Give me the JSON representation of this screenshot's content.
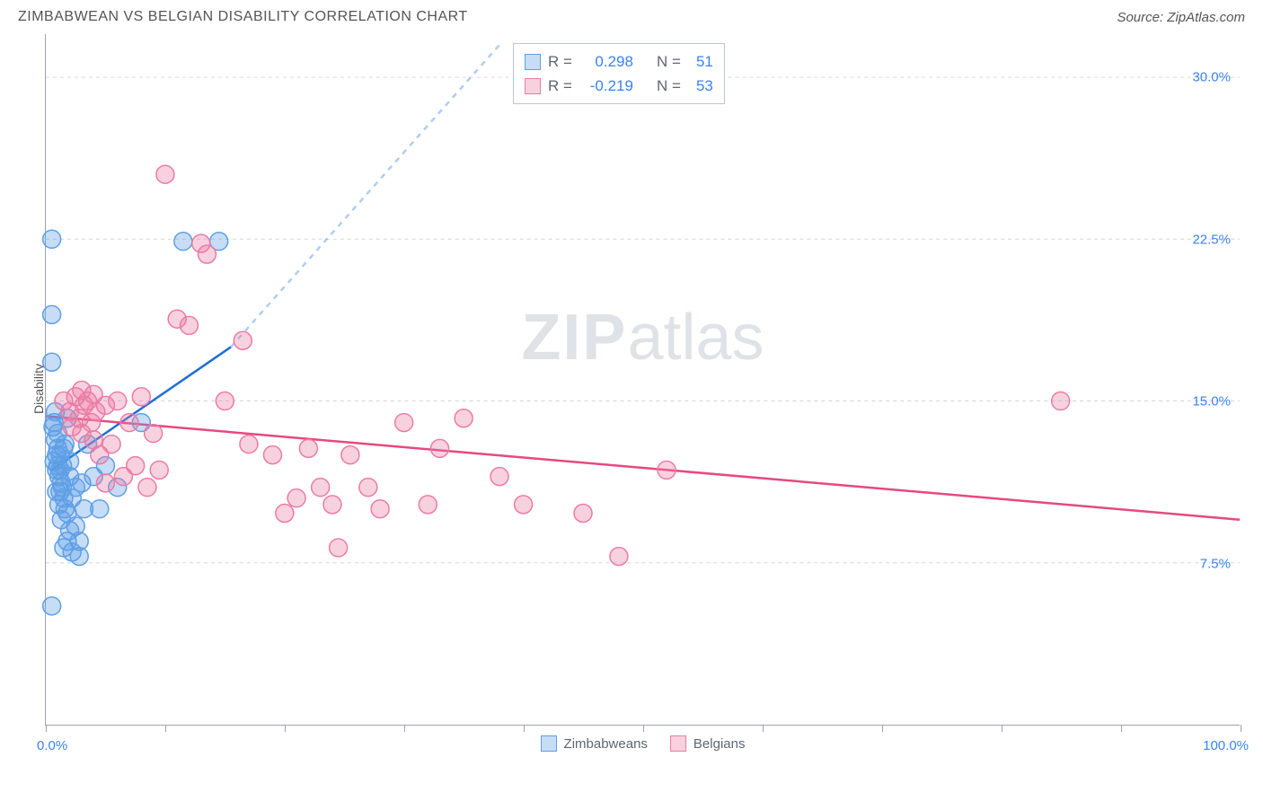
{
  "header": {
    "title": "ZIMBABWEAN VS BELGIAN DISABILITY CORRELATION CHART",
    "source": "Source: ZipAtlas.com"
  },
  "watermark": {
    "zip": "ZIP",
    "atlas": "atlas"
  },
  "chart": {
    "type": "scatter",
    "y_label": "Disability",
    "background_color": "#ffffff",
    "grid_color": "#d1d5db",
    "axis_color": "#9ca3af",
    "tick_label_color": "#3b82f6",
    "text_color": "#555555",
    "tick_label_fontsize": 15,
    "label_fontsize": 14,
    "title_fontsize": 16,
    "xlim": [
      0,
      100
    ],
    "ylim": [
      0,
      32
    ],
    "x_axis_labels": [
      {
        "value": 0,
        "text": "0.0%"
      },
      {
        "value": 100,
        "text": "100.0%"
      }
    ],
    "x_ticks": [
      0,
      10,
      20,
      30,
      40,
      50,
      60,
      70,
      80,
      90,
      100
    ],
    "y_gridlines": [
      {
        "value": 7.5,
        "text": "7.5%"
      },
      {
        "value": 15.0,
        "text": "15.0%"
      },
      {
        "value": 22.5,
        "text": "22.5%"
      },
      {
        "value": 30.0,
        "text": "30.0%"
      }
    ],
    "marker_radius": 10,
    "marker_fill_opacity": 0.35,
    "marker_stroke_width": 1.5,
    "series": [
      {
        "name": "Zimbabweans",
        "color": "#5e9fe6",
        "fill_color": "rgba(94,159,230,0.35)",
        "stroke_color": "#5e9fe6",
        "trend_color": "#1d6fd6",
        "trend_width": 2.5,
        "trend_dash_color": "rgba(29,111,214,0.35)",
        "trend_line": {
          "x1": 0.5,
          "y1": 11.8,
          "x2": 15.5,
          "y2": 17.5
        },
        "trend_dash": {
          "x1": 15.5,
          "y1": 17.5,
          "x2": 38,
          "y2": 31.5
        },
        "stats": {
          "R_label": "R =",
          "R": "0.298",
          "N_label": "N =",
          "N": "51"
        },
        "points": [
          [
            0.5,
            22.5
          ],
          [
            0.5,
            19.0
          ],
          [
            0.5,
            16.8
          ],
          [
            0.5,
            5.5
          ],
          [
            0.6,
            13.8
          ],
          [
            0.7,
            14.0
          ],
          [
            0.7,
            12.2
          ],
          [
            0.8,
            14.5
          ],
          [
            0.8,
            13.2
          ],
          [
            0.9,
            11.8
          ],
          [
            0.9,
            12.5
          ],
          [
            0.9,
            10.8
          ],
          [
            1.0,
            13.5
          ],
          [
            1.0,
            12.0
          ],
          [
            1.0,
            12.8
          ],
          [
            1.1,
            11.5
          ],
          [
            1.1,
            10.2
          ],
          [
            1.2,
            11.8
          ],
          [
            1.2,
            12.5
          ],
          [
            1.2,
            10.8
          ],
          [
            1.3,
            11.2
          ],
          [
            1.3,
            9.5
          ],
          [
            1.4,
            12.0
          ],
          [
            1.4,
            11.0
          ],
          [
            1.5,
            12.8
          ],
          [
            1.5,
            10.5
          ],
          [
            1.5,
            8.2
          ],
          [
            1.6,
            13.0
          ],
          [
            1.6,
            10.0
          ],
          [
            1.8,
            9.8
          ],
          [
            1.8,
            8.5
          ],
          [
            1.8,
            14.2
          ],
          [
            2.0,
            11.5
          ],
          [
            2.0,
            9.0
          ],
          [
            2.0,
            12.2
          ],
          [
            2.2,
            10.5
          ],
          [
            2.2,
            8.0
          ],
          [
            2.5,
            9.2
          ],
          [
            2.5,
            11.0
          ],
          [
            2.8,
            8.5
          ],
          [
            2.8,
            7.8
          ],
          [
            3.0,
            11.2
          ],
          [
            3.2,
            10.0
          ],
          [
            3.5,
            13.0
          ],
          [
            4.0,
            11.5
          ],
          [
            4.5,
            10.0
          ],
          [
            5.0,
            12.0
          ],
          [
            6.0,
            11.0
          ],
          [
            8.0,
            14.0
          ],
          [
            11.5,
            22.4
          ],
          [
            14.5,
            22.4
          ]
        ]
      },
      {
        "name": "Belgians",
        "color": "#eb7ca4",
        "fill_color": "rgba(235,124,164,0.35)",
        "stroke_color": "#eb7ca4",
        "trend_color": "#e6497f",
        "trend_width": 2.5,
        "trend_line": {
          "x1": 0,
          "y1": 14.3,
          "x2": 100,
          "y2": 9.5
        },
        "stats": {
          "R_label": "R =",
          "R": "-0.219",
          "N_label": "N =",
          "N": "53"
        },
        "points": [
          [
            1.5,
            15.0
          ],
          [
            2.0,
            14.5
          ],
          [
            2.2,
            13.8
          ],
          [
            2.5,
            15.2
          ],
          [
            2.8,
            14.2
          ],
          [
            3.0,
            15.5
          ],
          [
            3.0,
            13.5
          ],
          [
            3.2,
            14.8
          ],
          [
            3.5,
            15.0
          ],
          [
            3.8,
            14.0
          ],
          [
            4.0,
            15.3
          ],
          [
            4.0,
            13.2
          ],
          [
            4.2,
            14.5
          ],
          [
            4.5,
            12.5
          ],
          [
            5.0,
            14.8
          ],
          [
            5.0,
            11.2
          ],
          [
            5.5,
            13.0
          ],
          [
            6.0,
            15.0
          ],
          [
            6.5,
            11.5
          ],
          [
            7.0,
            14.0
          ],
          [
            7.5,
            12.0
          ],
          [
            8.0,
            15.2
          ],
          [
            8.5,
            11.0
          ],
          [
            9.0,
            13.5
          ],
          [
            9.5,
            11.8
          ],
          [
            10.0,
            25.5
          ],
          [
            11.0,
            18.8
          ],
          [
            12.0,
            18.5
          ],
          [
            13.0,
            22.3
          ],
          [
            13.5,
            21.8
          ],
          [
            15.0,
            15.0
          ],
          [
            16.5,
            17.8
          ],
          [
            17.0,
            13.0
          ],
          [
            19.0,
            12.5
          ],
          [
            20.0,
            9.8
          ],
          [
            21.0,
            10.5
          ],
          [
            22.0,
            12.8
          ],
          [
            23.0,
            11.0
          ],
          [
            24.0,
            10.2
          ],
          [
            24.5,
            8.2
          ],
          [
            25.5,
            12.5
          ],
          [
            27.0,
            11.0
          ],
          [
            28.0,
            10.0
          ],
          [
            30.0,
            14.0
          ],
          [
            32.0,
            10.2
          ],
          [
            33.0,
            12.8
          ],
          [
            35.0,
            14.2
          ],
          [
            38.0,
            11.5
          ],
          [
            40.0,
            10.2
          ],
          [
            45.0,
            9.8
          ],
          [
            48.0,
            7.8
          ],
          [
            52.0,
            11.8
          ],
          [
            85.0,
            15.0
          ]
        ]
      }
    ],
    "legend": {
      "items": [
        {
          "label": "Zimbabweans",
          "fill": "rgba(94,159,230,0.35)",
          "border": "#5e9fe6"
        },
        {
          "label": "Belgians",
          "fill": "rgba(235,124,164,0.35)",
          "border": "#eb7ca4"
        }
      ]
    }
  }
}
